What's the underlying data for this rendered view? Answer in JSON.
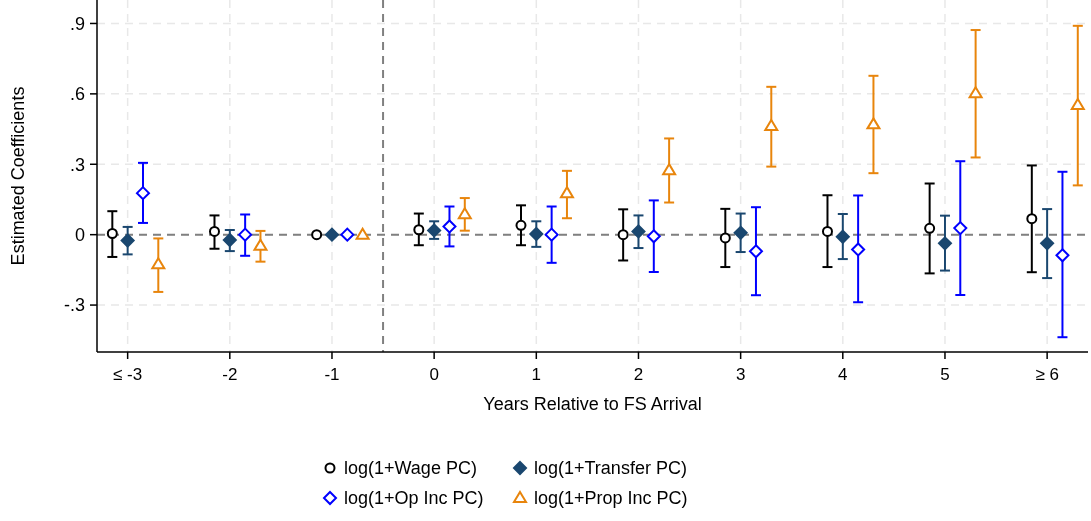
{
  "chart_data": {
    "type": "scatter",
    "xlabel": "Years Relative to FS Arrival",
    "ylabel": "Estimated Coefficients",
    "xlim": [
      -3.3,
      6.4
    ],
    "xticks": [
      {
        "value": -3,
        "label": "≤ -3"
      },
      {
        "value": -2,
        "label": "-2"
      },
      {
        "value": -1,
        "label": "-1"
      },
      {
        "value": 0,
        "label": "0"
      },
      {
        "value": 1,
        "label": "1"
      },
      {
        "value": 2,
        "label": "2"
      },
      {
        "value": 3,
        "label": "3"
      },
      {
        "value": 4,
        "label": "4"
      },
      {
        "value": 5,
        "label": "5"
      },
      {
        "value": 6,
        "label": "≥ 6"
      }
    ],
    "ylim": [
      -0.5,
      1.0
    ],
    "yticks": [
      {
        "value": -0.3,
        "label": "-.3"
      },
      {
        "value": 0,
        "label": "0"
      },
      {
        "value": 0.3,
        "label": ".3"
      },
      {
        "value": 0.6,
        "label": ".6"
      },
      {
        "value": 0.9,
        "label": ".9"
      }
    ],
    "grid": true,
    "legend": "bottom",
    "ref_lines": [
      {
        "axis": "y",
        "value": 0,
        "color": "#808080",
        "line_style": "dashed"
      },
      {
        "axis": "x",
        "value": -0.5,
        "color": "#808080",
        "line_style": "dashed"
      }
    ],
    "series": [
      {
        "name": "log(1+Wage PC)",
        "color": "#000000",
        "marker": "circle",
        "x": [
          -3.15,
          -2.15,
          -1.15,
          -0.15,
          0.85,
          1.85,
          2.85,
          3.85,
          4.85,
          5.85
        ],
        "values": [
          0.005,
          0.014,
          0,
          0.021,
          0.04,
          0,
          -0.014,
          0.014,
          0.027,
          0.068
        ],
        "errors": [
          [
            -0.095,
            0.1
          ],
          [
            -0.06,
            0.082
          ],
          null,
          [
            -0.045,
            0.09
          ],
          [
            -0.045,
            0.125
          ],
          [
            -0.11,
            0.108
          ],
          [
            -0.138,
            0.11
          ],
          [
            -0.138,
            0.168
          ],
          [
            -0.165,
            0.218
          ],
          [
            -0.16,
            0.295
          ]
        ]
      },
      {
        "name": "log(1+Transfer PC)",
        "color": "#1a476f",
        "marker": "diamond",
        "x": [
          -3,
          -2,
          -1,
          0,
          1,
          2,
          3,
          4,
          5,
          6
        ],
        "values": [
          -0.025,
          -0.023,
          0,
          0.018,
          0.003,
          0.014,
          0.008,
          -0.009,
          -0.037,
          -0.037
        ],
        "errors": [
          [
            -0.084,
            0.033
          ],
          [
            -0.07,
            0.02
          ],
          null,
          [
            -0.018,
            0.057
          ],
          [
            -0.052,
            0.057
          ],
          [
            -0.057,
            0.082
          ],
          [
            -0.074,
            0.09
          ],
          [
            -0.104,
            0.088
          ],
          [
            -0.153,
            0.081
          ],
          [
            -0.185,
            0.109
          ]
        ]
      },
      {
        "name": "log(1+Op Inc PC)",
        "color": "#0000ff",
        "marker": "diamond",
        "x": [
          -2.85,
          -1.85,
          -0.85,
          0.15,
          1.15,
          2.15,
          3.15,
          4.15,
          5.15,
          6.15
        ],
        "values": [
          0.177,
          0,
          0,
          0.035,
          0,
          -0.007,
          -0.071,
          -0.063,
          0.028,
          -0.088
        ],
        "errors": [
          [
            0.05,
            0.306
          ],
          [
            -0.09,
            0.086
          ],
          null,
          [
            -0.05,
            0.12
          ],
          [
            -0.12,
            0.12
          ],
          [
            -0.159,
            0.146
          ],
          [
            -0.258,
            0.117
          ],
          [
            -0.288,
            0.167
          ],
          [
            -0.257,
            0.313
          ],
          [
            -0.437,
            0.268
          ]
        ]
      },
      {
        "name": "log(1+Prop Inc PC)",
        "color": "#e8850c",
        "marker": "triangle",
        "x": [
          -2.7,
          -1.7,
          -0.7,
          0.3,
          1.3,
          2.3,
          3.3,
          4.3,
          5.3,
          6.3
        ],
        "values": [
          -0.126,
          -0.047,
          0,
          0.087,
          0.177,
          0.275,
          0.463,
          0.47,
          0.603,
          0.553
        ],
        "errors": [
          [
            -0.244,
            -0.016
          ],
          [
            -0.115,
            0.016
          ],
          null,
          [
            0.017,
            0.156
          ],
          [
            0.07,
            0.272
          ],
          [
            0.137,
            0.41
          ],
          [
            0.29,
            0.63
          ],
          [
            0.262,
            0.677
          ],
          [
            0.329,
            0.872
          ],
          [
            0.21,
            0.89
          ]
        ]
      }
    ]
  }
}
